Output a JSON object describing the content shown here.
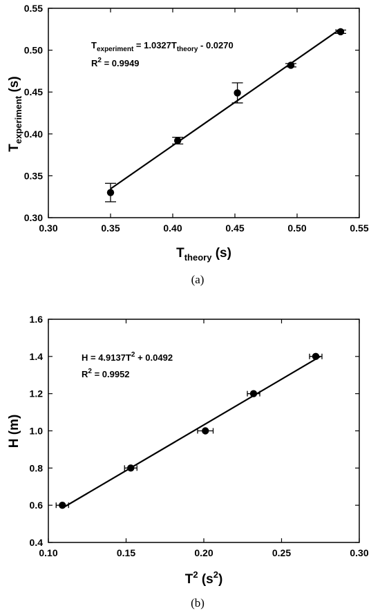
{
  "charts": [
    {
      "type": "scatter",
      "panel_label": "(a)",
      "xlabel": {
        "main": "T",
        "sub": "theory",
        "unit": " (s)"
      },
      "ylabel": {
        "main": "T",
        "sub": "experiment",
        "unit": " (s)"
      },
      "xlim": [
        0.3,
        0.55
      ],
      "ylim": [
        0.3,
        0.55
      ],
      "xticks": [
        "0.30",
        "0.35",
        "0.40",
        "0.45",
        "0.50",
        "0.55"
      ],
      "yticks": [
        "0.30",
        "0.35",
        "0.40",
        "0.45",
        "0.50",
        "0.55"
      ],
      "equation": {
        "line1_a": "T",
        "line1_a_sub": "experiment",
        "line1_b": " = 1.0327T",
        "line1_b_sub": "theory",
        "line1_c": " - 0.0270",
        "line2_a": "R",
        "line2_sup": "2",
        "line2_b": " = 0.9949"
      },
      "points": [
        {
          "x": 0.35,
          "y": 0.33,
          "err": 0.011
        },
        {
          "x": 0.404,
          "y": 0.392,
          "err": 0.004
        },
        {
          "x": 0.452,
          "y": 0.449,
          "err": 0.012
        },
        {
          "x": 0.495,
          "y": 0.482,
          "err": 0.002
        },
        {
          "x": 0.535,
          "y": 0.522,
          "err": 0.002
        }
      ],
      "fit": {
        "slope": 1.0327,
        "intercept": -0.027,
        "x_range": [
          0.35,
          0.535
        ]
      },
      "grid": false
    },
    {
      "type": "scatter",
      "panel_label": "(b)",
      "xlabel": {
        "main": "T",
        "sup": "2",
        "unit_pre": " (s",
        "unit_sup": "2",
        "unit_post": ")"
      },
      "ylabel": {
        "main": "H (m)"
      },
      "xlim": [
        0.1,
        0.3
      ],
      "ylim": [
        0.4,
        1.6
      ],
      "xticks": [
        "0.10",
        "0.15",
        "0.20",
        "0.25",
        "0.30"
      ],
      "yticks": [
        "0.4",
        "0.6",
        "0.8",
        "1.0",
        "1.2",
        "1.4",
        "1.6"
      ],
      "equation": {
        "line1_a": "H = 4.9137T",
        "line1_sup": "2",
        "line1_b": " + 0.0492",
        "line2_a": "R",
        "line2_sup": "2",
        "line2_b": " = 0.9952"
      },
      "points": [
        {
          "x": 0.109,
          "y": 0.6,
          "xerr": 0.004
        },
        {
          "x": 0.153,
          "y": 0.8,
          "xerr": 0.004
        },
        {
          "x": 0.201,
          "y": 1.0,
          "xerr": 0.005
        },
        {
          "x": 0.232,
          "y": 1.2,
          "xerr": 0.004
        },
        {
          "x": 0.272,
          "y": 1.4,
          "xerr": 0.004
        }
      ],
      "fit": {
        "slope": 4.9137,
        "intercept": 0.0492,
        "x_range": [
          0.109,
          0.275
        ]
      },
      "grid": false
    }
  ],
  "chart_data": [
    {
      "type": "scatter",
      "xlabel": "Ttheory (s)",
      "ylabel": "Texperiment (s)",
      "xlim": [
        0.3,
        0.55
      ],
      "ylim": [
        0.3,
        0.55
      ],
      "x": [
        0.35,
        0.404,
        0.452,
        0.495,
        0.535
      ],
      "y": [
        0.33,
        0.392,
        0.449,
        0.482,
        0.522
      ],
      "y_error": [
        0.011,
        0.004,
        0.012,
        0.002,
        0.002
      ],
      "annotations": [
        "Texperiment = 1.0327Ttheory - 0.0270",
        "R2 = 0.9949"
      ]
    },
    {
      "type": "scatter",
      "xlabel": "T2 (s2)",
      "ylabel": "H (m)",
      "xlim": [
        0.1,
        0.3
      ],
      "ylim": [
        0.4,
        1.6
      ],
      "x": [
        0.109,
        0.153,
        0.201,
        0.232,
        0.272
      ],
      "y": [
        0.6,
        0.8,
        1.0,
        1.2,
        1.4
      ],
      "x_error": [
        0.004,
        0.004,
        0.005,
        0.004,
        0.004
      ],
      "annotations": [
        "H = 4.9137T2 + 0.0492",
        "R2 = 0.9952"
      ]
    }
  ]
}
